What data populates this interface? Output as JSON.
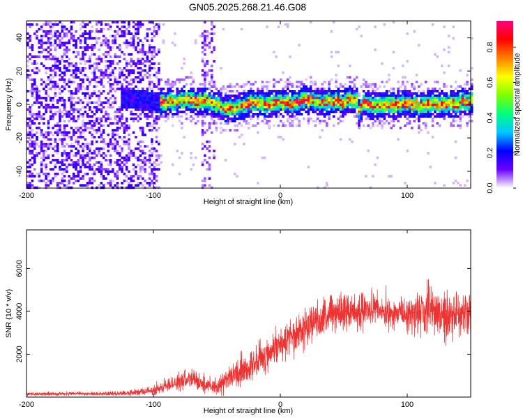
{
  "figure": {
    "title": "GN05.2025.268.21.46.G08"
  },
  "chart_data": [
    {
      "type": "heatmap",
      "title": "GN05.2025.268.21.46.G08",
      "xlabel": "Height of straight line (km)",
      "ylabel": "Frequency (Hz)",
      "xlim": [
        -200,
        150
      ],
      "ylim": [
        -50,
        50
      ],
      "xticks": [
        -200,
        -100,
        0,
        100
      ],
      "yticks": [
        -40,
        -20,
        0,
        20,
        40
      ],
      "colorbar": {
        "label": "Normalized spectral amplitude",
        "range": [
          0,
          0.95
        ],
        "ticks": [
          0.0,
          0.2,
          0.4,
          0.6,
          0.8
        ],
        "colormap": [
          "#ffffff",
          "#6a00ff",
          "#0000ff",
          "#00c8ff",
          "#00ff80",
          "#80ff00",
          "#ffff00",
          "#ff8000",
          "#ff0000",
          "#ff0080"
        ]
      },
      "ridge": {
        "description": "dominant frequency ridge near 0 Hz",
        "x": [
          -120,
          -110,
          -100,
          -90,
          -80,
          -70,
          -60,
          -50,
          -40,
          -35,
          -30,
          -20,
          -10,
          0,
          10,
          20,
          30,
          40,
          50,
          60,
          62,
          65,
          70,
          80,
          90,
          100,
          110,
          120,
          130,
          140,
          150
        ],
        "y": [
          3,
          3,
          2,
          1,
          2,
          3,
          2,
          0,
          -3,
          -2,
          0,
          1,
          0,
          2,
          1,
          3,
          2,
          2,
          1,
          3,
          -5,
          2,
          -1,
          0,
          0,
          1,
          -1,
          1,
          0,
          1,
          2
        ]
      },
      "noise_region_x": [
        -200,
        -95
      ],
      "grid": false
    },
    {
      "type": "line",
      "xlabel": "Height of straight line (km)",
      "ylabel": "SNR (10 * v/v)",
      "xlim": [
        -200,
        150
      ],
      "ylim": [
        0,
        7800
      ],
      "xticks": [
        -200,
        -100,
        0,
        100
      ],
      "yticks": [
        2000,
        4000,
        6000
      ],
      "series": [
        {
          "color": "#ee3333",
          "envelope": {
            "x": [
              -200,
              -180,
              -160,
              -140,
              -120,
              -100,
              -90,
              -80,
              -70,
              -60,
              -50,
              -40,
              -30,
              -20,
              -10,
              0,
              10,
              20,
              30,
              40,
              50,
              60,
              70,
              80,
              90,
              100,
              110,
              120,
              130,
              140,
              150
            ],
            "mean": [
              150,
              150,
              160,
              150,
              180,
              300,
              500,
              700,
              800,
              600,
              500,
              900,
              1200,
              1600,
              2000,
              2500,
              2900,
              3300,
              3600,
              3900,
              4000,
              4000,
              4100,
              4000,
              3900,
              3800,
              4000,
              4000,
              3700,
              3800,
              3900
            ],
            "spread": [
              100,
              100,
              100,
              100,
              150,
              250,
              350,
              500,
              600,
              500,
              500,
              700,
              900,
              1000,
              1100,
              1100,
              1100,
              1100,
              1100,
              1200,
              1200,
              1000,
              900,
              800,
              900,
              1100,
              1400,
              1600,
              1600,
              1500,
              1500
            ]
          }
        }
      ],
      "grid": false
    }
  ]
}
